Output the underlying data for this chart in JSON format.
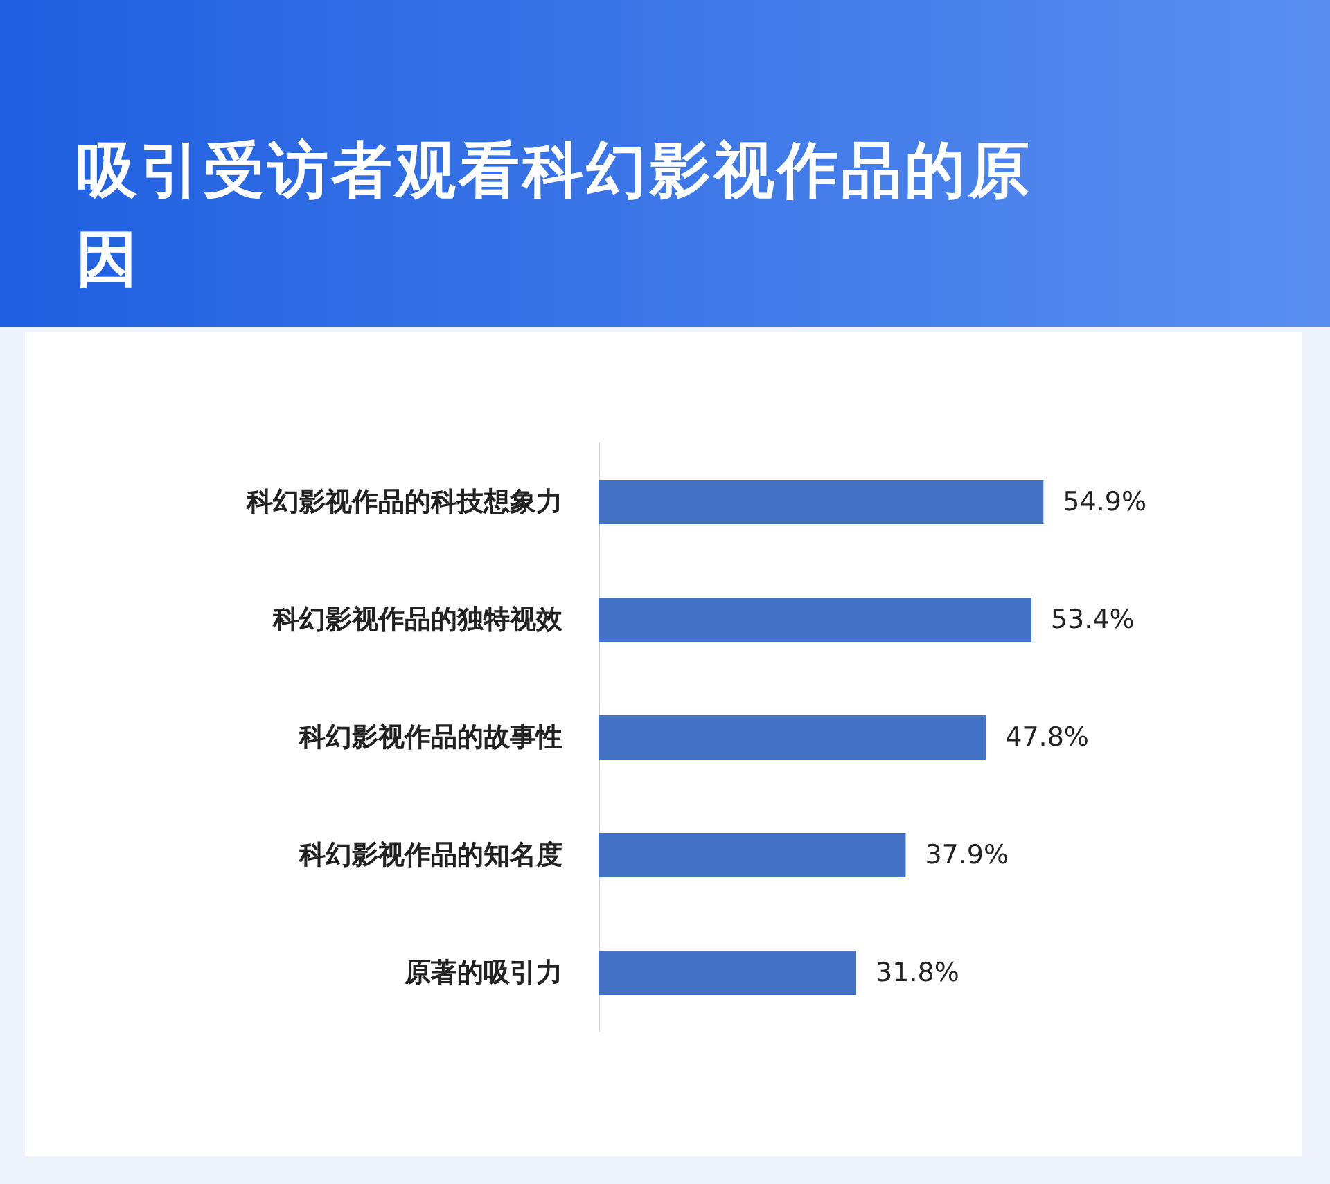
{
  "chart_data": {
    "type": "bar",
    "orientation": "horizontal",
    "title": "吸引受访者观看科幻影视作品的原因",
    "categories": [
      "科幻影视作品的科技想象力",
      "科幻影视作品的独特视效",
      "科幻影视作品的故事性",
      "科幻影视作品的知名度",
      "原著的吸引力"
    ],
    "values": [
      54.9,
      53.4,
      47.8,
      37.9,
      31.8
    ],
    "value_labels": [
      "54.9%",
      "53.4%",
      "47.8%",
      "37.9%",
      "31.8%"
    ],
    "color": "#4472c4"
  }
}
